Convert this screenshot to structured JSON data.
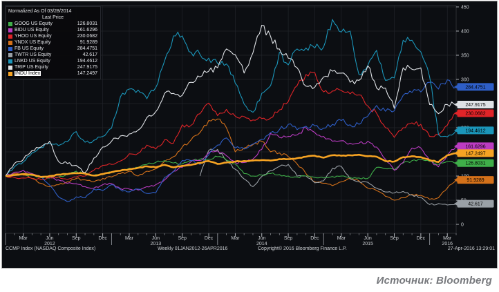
{
  "panel_background": "#0c0e12",
  "grid_color": "#21242a",
  "axis_text_color": "#cdd0d4",
  "source": {
    "label": "Источник: Bloomberg"
  },
  "footer": {
    "security": "CCMP Index (NASDAQ Composite Index)",
    "period": "Weekly 01JAN2012-26APR2016",
    "copyright": "Copyright© 2016 Bloomberg Finance L.P.",
    "timestamp": "27-Apr-2016 13:29:01"
  },
  "chart_data": {
    "type": "line",
    "title": "Normalized As Of 03/28/2014",
    "subtitle": "Last Price",
    "x_start": "Jan 2012",
    "x_end": "26 Apr 2016",
    "x_unit": "months since Jan 2012 (0..51)",
    "ylim": [
      0,
      460
    ],
    "y_ticks": [
      450,
      400,
      350,
      300,
      250,
      200,
      150,
      100,
      50,
      0
    ],
    "x_ticks": [
      {
        "idx": 2,
        "label": "Mar"
      },
      {
        "idx": 5,
        "label": "Jun"
      },
      {
        "idx": 8,
        "label": "Sep"
      },
      {
        "idx": 11,
        "label": "Dec"
      },
      {
        "idx": 14,
        "label": "Mar"
      },
      {
        "idx": 17,
        "label": "Jun"
      },
      {
        "idx": 20,
        "label": "Sep"
      },
      {
        "idx": 23,
        "label": "Dec"
      },
      {
        "idx": 26,
        "label": "Mar"
      },
      {
        "idx": 29,
        "label": "Jun"
      },
      {
        "idx": 32,
        "label": "Sep"
      },
      {
        "idx": 35,
        "label": "Dec"
      },
      {
        "idx": 38,
        "label": "Mar"
      },
      {
        "idx": 41,
        "label": "Jun"
      },
      {
        "idx": 44,
        "label": "Sep"
      },
      {
        "idx": 47,
        "label": "Dec"
      },
      {
        "idx": 50,
        "label": "Mar"
      }
    ],
    "year_labels": [
      {
        "idx": 5,
        "label": "2012"
      },
      {
        "idx": 17,
        "label": "2013"
      },
      {
        "idx": 29,
        "label": "2014"
      },
      {
        "idx": 41,
        "label": "2015"
      },
      {
        "idx": 50,
        "label": "2016"
      }
    ],
    "year_boundary_ticks": [
      12,
      24,
      36,
      48
    ],
    "legend_position": "top-left",
    "grid": true,
    "series": [
      {
        "key": "goog",
        "name": "GOOG US Equity",
        "last_price": "126.8031",
        "color": "#3fae49",
        "width": 1.1,
        "selected": false,
        "data": [
          100,
          103,
          104,
          101,
          97,
          96,
          98,
          104,
          110,
          105,
          102,
          104,
          108,
          112,
          116,
          118,
          124,
          128,
          132,
          127,
          125,
          132,
          135,
          135,
          140,
          133,
          125,
          105,
          100,
          102,
          105,
          103,
          100,
          98,
          100,
          97,
          96,
          99,
          100,
          97,
          96,
          95,
          118,
          115,
          113,
          127,
          132,
          135,
          130,
          124,
          130,
          126.8
        ]
      },
      {
        "key": "bidu",
        "name": "BIDU US Equity",
        "last_price": "161.6296",
        "color": "#bb3cc2",
        "width": 1.1,
        "selected": false,
        "data": [
          100,
          108,
          112,
          105,
          98,
          96,
          92,
          85,
          84,
          78,
          75,
          82,
          84,
          74,
          73,
          71,
          78,
          82,
          92,
          110,
          118,
          130,
          132,
          148,
          152,
          142,
          128,
          128,
          135,
          155,
          188,
          180,
          182,
          185,
          200,
          190,
          182,
          172,
          173,
          168,
          168,
          172,
          160,
          135,
          112,
          128,
          158,
          158,
          133,
          119,
          142,
          161.6
        ]
      },
      {
        "key": "yhoo",
        "name": "YHOO US Equity",
        "last_price": "230.0682",
        "color": "#e02428",
        "width": 1.1,
        "selected": false,
        "data": [
          100,
          97,
          96,
          95,
          93,
          97,
          98,
          93,
          98,
          100,
          112,
          122,
          124,
          131,
          146,
          147,
          164,
          156,
          175,
          168,
          206,
          205,
          229,
          251,
          225,
          238,
          224,
          223,
          216,
          219,
          220,
          237,
          254,
          287,
          310,
          314,
          274,
          276,
          277,
          270,
          268,
          245,
          230,
          200,
          180,
          200,
          210,
          207,
          182,
          185,
          205,
          230.1
        ]
      },
      {
        "key": "yndx",
        "name": "YNDX US Equity",
        "last_price": "91.9289",
        "color": "#d4711a",
        "width": 1.1,
        "selected": false,
        "data": [
          100,
          105,
          102,
          95,
          85,
          78,
          82,
          88,
          95,
          92,
          88,
          95,
          98,
          105,
          110,
          100,
          110,
          115,
          130,
          140,
          160,
          175,
          190,
          215,
          218,
          200,
          150,
          158,
          165,
          172,
          150,
          148,
          140,
          125,
          105,
          88,
          85,
          80,
          88,
          95,
          90,
          75,
          70,
          58,
          50,
          55,
          62,
          60,
          52,
          55,
          75,
          91.9
        ]
      },
      {
        "key": "fb",
        "name": "FB US Equity",
        "last_price": "284.4751",
        "color": "#2e5ec6",
        "width": 1.1,
        "selected": false,
        "data": [
          null,
          null,
          null,
          null,
          100,
          81,
          57,
          47,
          57,
          55,
          73,
          70,
          82,
          72,
          67,
          73,
          64,
          65,
          97,
          109,
          132,
          132,
          124,
          144,
          164,
          179,
          158,
          156,
          166,
          176,
          190,
          196,
          207,
          196,
          203,
          204,
          199,
          207,
          215,
          206,
          207,
          224,
          246,
          234,
          235,
          267,
          273,
          274,
          294,
          280,
          299,
          284.5
        ]
      },
      {
        "key": "twtr",
        "name": "TWTR US Equity",
        "last_price": "42.617",
        "color": "#9aa0a6",
        "width": 1.1,
        "selected": false,
        "data": [
          null,
          null,
          null,
          null,
          null,
          null,
          null,
          null,
          null,
          null,
          null,
          null,
          null,
          null,
          null,
          null,
          null,
          null,
          null,
          null,
          null,
          null,
          100,
          153,
          155,
          132,
          114,
          94,
          78,
          99,
          111,
          120,
          124,
          100,
          100,
          86,
          90,
          116,
          120,
          94,
          88,
          87,
          75,
          67,
          65,
          68,
          61,
          56,
          41,
          43,
          40,
          42.6
        ]
      },
      {
        "key": "lnkd",
        "name": "LNKD US Equity",
        "last_price": "194.4612",
        "color": "#1b96ba",
        "width": 1.1,
        "selected": false,
        "data": [
          100,
          119,
          129,
          148,
          159,
          168,
          163,
          171,
          192,
          170,
          174,
          182,
          199,
          264,
          280,
          278,
          260,
          283,
          338,
          390,
          390,
          356,
          352,
          344,
          333,
          332,
          292,
          249,
          232,
          271,
          287,
          356,
          330,
          363,
          365,
          365,
          367,
          424,
          398,
          400,
          310,
          329,
          360,
          298,
          303,
          381,
          381,
          357,
          305,
          186,
          181,
          194.5
        ]
      },
      {
        "key": "trip",
        "name": "TRIP US Equity",
        "last_price": "247.9175",
        "color": "#dfe2e6",
        "width": 1.1,
        "selected": false,
        "data": [
          100,
          126,
          134,
          153,
          160,
          172,
          130,
          126,
          122,
          107,
          137,
          160,
          172,
          183,
          187,
          195,
          221,
          233,
          271,
          271,
          267,
          294,
          305,
          317,
          324,
          363,
          351,
          313,
          355,
          412,
          389,
          363,
          344,
          324,
          286,
          284,
          305,
          317,
          313,
          294,
          298,
          328,
          282,
          282,
          240,
          324,
          321,
          324,
          248,
          229,
          248,
          247.9
        ]
      },
      {
        "key": "indu",
        "name": "INDU Index",
        "last_price": "147.2497",
        "color": "#f6a323",
        "width": 2.6,
        "selected": true,
        "data": [
          100,
          102,
          104,
          103,
          98,
          100,
          103,
          104,
          106,
          105,
          101,
          104,
          108,
          111,
          114,
          117,
          120,
          118,
          123,
          118,
          121,
          123,
          127,
          131,
          125,
          128,
          130,
          131,
          132,
          133,
          132,
          135,
          135,
          137,
          140,
          142,
          138,
          143,
          142,
          143,
          144,
          141,
          140,
          131,
          130,
          139,
          141,
          139,
          133,
          129,
          143,
          147.2
        ]
      }
    ]
  }
}
